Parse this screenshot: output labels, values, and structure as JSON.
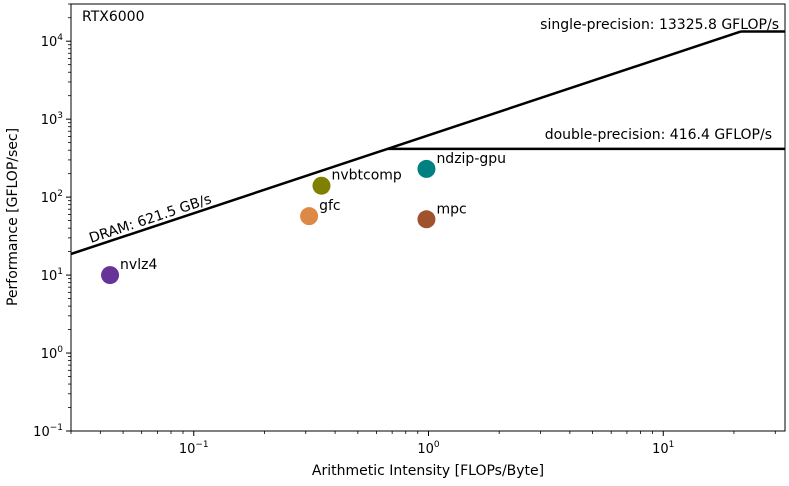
{
  "chart_data": {
    "type": "scatter",
    "title": "",
    "xlabel": "Arithmetic Intensity [FLOPs/Byte]",
    "ylabel": "Performance [GFLOP/sec]",
    "xscale": "log",
    "yscale": "log",
    "xlim": [
      0.03,
      33
    ],
    "ylim": [
      0.1,
      30000
    ],
    "grid": false,
    "x_ticks": [
      {
        "base": "10",
        "exp": "−1",
        "value": 0.1
      },
      {
        "base": "10",
        "exp": "0",
        "value": 1
      },
      {
        "base": "10",
        "exp": "1",
        "value": 10
      }
    ],
    "y_ticks": [
      {
        "base": "10",
        "exp": "−1",
        "value": 0.1
      },
      {
        "base": "10",
        "exp": "0",
        "value": 1
      },
      {
        "base": "10",
        "exp": "1",
        "value": 10
      },
      {
        "base": "10",
        "exp": "2",
        "value": 100
      },
      {
        "base": "10",
        "exp": "3",
        "value": 1000
      },
      {
        "base": "10",
        "exp": "4",
        "value": 10000
      }
    ],
    "device_label": "RTX6000",
    "roofline": {
      "dram_bandwidth_gbs": 621.5,
      "single_peak_gflops": 13325.8,
      "double_peak_gflops": 416.4,
      "dram_label": "DRAM: 621.5 GB/s",
      "single_label": "single-precision: 13325.8 GFLOP/s",
      "double_label": "double-precision: 416.4 GFLOP/s"
    },
    "points": [
      {
        "name": "nvlz4",
        "x": 0.044,
        "y": 10,
        "color": "#663399"
      },
      {
        "name": "gfc",
        "x": 0.31,
        "y": 57,
        "color": "#dd8844"
      },
      {
        "name": "nvbtcomp",
        "x": 0.35,
        "y": 140,
        "color": "#808000"
      },
      {
        "name": "ndzip-gpu",
        "x": 0.98,
        "y": 230,
        "color": "#008080"
      },
      {
        "name": "mpc",
        "x": 0.98,
        "y": 52,
        "color": "#a0522d"
      }
    ]
  }
}
